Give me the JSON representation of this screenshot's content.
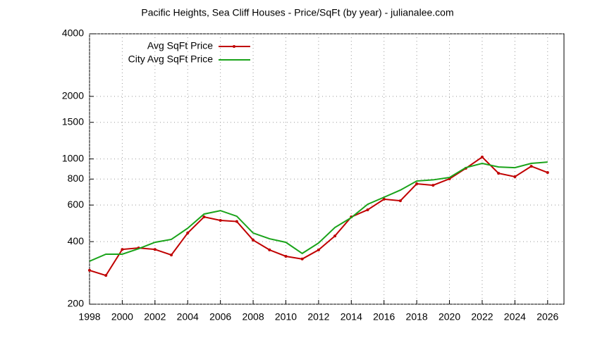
{
  "chart_data": {
    "type": "line",
    "title": "Pacific Heights, Sea Cliff Houses - Price/SqFt (by year) - julianalee.com",
    "x": [
      1998,
      1999,
      2000,
      2001,
      2002,
      2003,
      2004,
      2005,
      2006,
      2007,
      2008,
      2009,
      2010,
      2011,
      2012,
      2013,
      2014,
      2015,
      2016,
      2017,
      2018,
      2019,
      2020,
      2021,
      2022,
      2023,
      2024,
      2025,
      2026
    ],
    "series": [
      {
        "name": "Avg SqFt Price",
        "color": "#c00000",
        "values": [
          291,
          275,
          367,
          373,
          367,
          345,
          440,
          526,
          506,
          500,
          407,
          365,
          340,
          330,
          365,
          426,
          526,
          569,
          640,
          629,
          759,
          747,
          802,
          901,
          1021,
          853,
          821,
          922,
          860
        ]
      },
      {
        "name": "City Avg SqFt Price",
        "color": "#1aa31a",
        "values": [
          322,
          348,
          348,
          370,
          397,
          410,
          464,
          543,
          564,
          530,
          440,
          413,
          397,
          351,
          394,
          468,
          522,
          605,
          654,
          708,
          783,
          793,
          814,
          908,
          952,
          915,
          908,
          952,
          966
        ]
      }
    ],
    "xlim": [
      1998,
      2027
    ],
    "xticks": [
      1998,
      2000,
      2002,
      2004,
      2006,
      2008,
      2010,
      2012,
      2014,
      2016,
      2018,
      2020,
      2022,
      2024,
      2026
    ],
    "ylim": [
      200,
      4000
    ],
    "yticks": [
      200,
      400,
      600,
      800,
      1000,
      1500,
      2000,
      4000
    ],
    "log_y": true,
    "grid": true,
    "legend": "top-left"
  }
}
